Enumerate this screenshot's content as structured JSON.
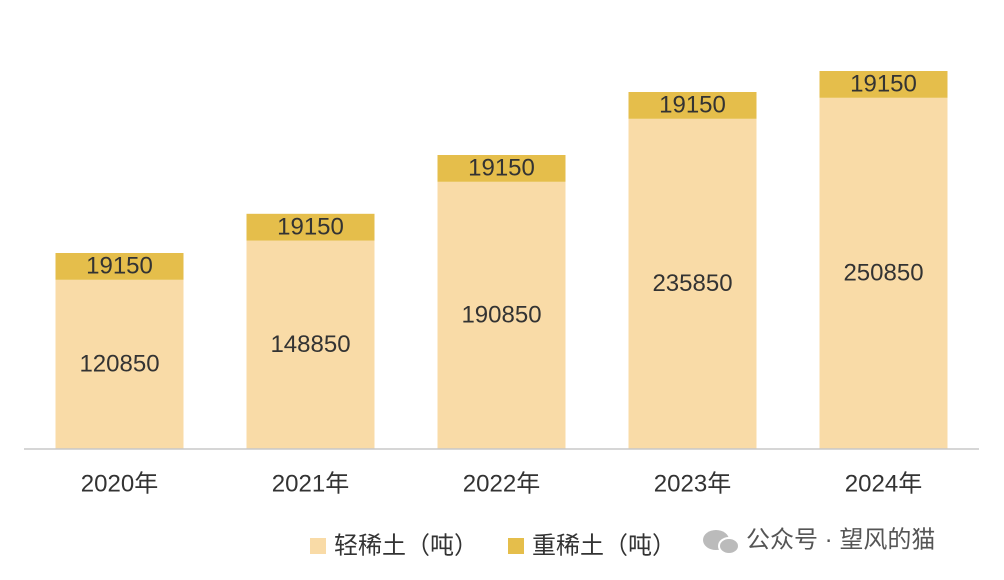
{
  "chart_data": {
    "type": "stacked_bar",
    "categories": [
      "2020年",
      "2021年",
      "2022年",
      "2023年",
      "2024年"
    ],
    "series": [
      {
        "name": "轻稀土（吨）",
        "color": "#f9dba7",
        "values": [
          120850,
          148850,
          190850,
          235850,
          250850
        ]
      },
      {
        "name": "重稀土（吨）",
        "color": "#e5be4b",
        "values": [
          19150,
          19150,
          19150,
          19150,
          19150
        ]
      }
    ],
    "ylim": [
      0,
      300000
    ],
    "legend": "bottom"
  },
  "watermark": "公众号 · 望风的猫"
}
